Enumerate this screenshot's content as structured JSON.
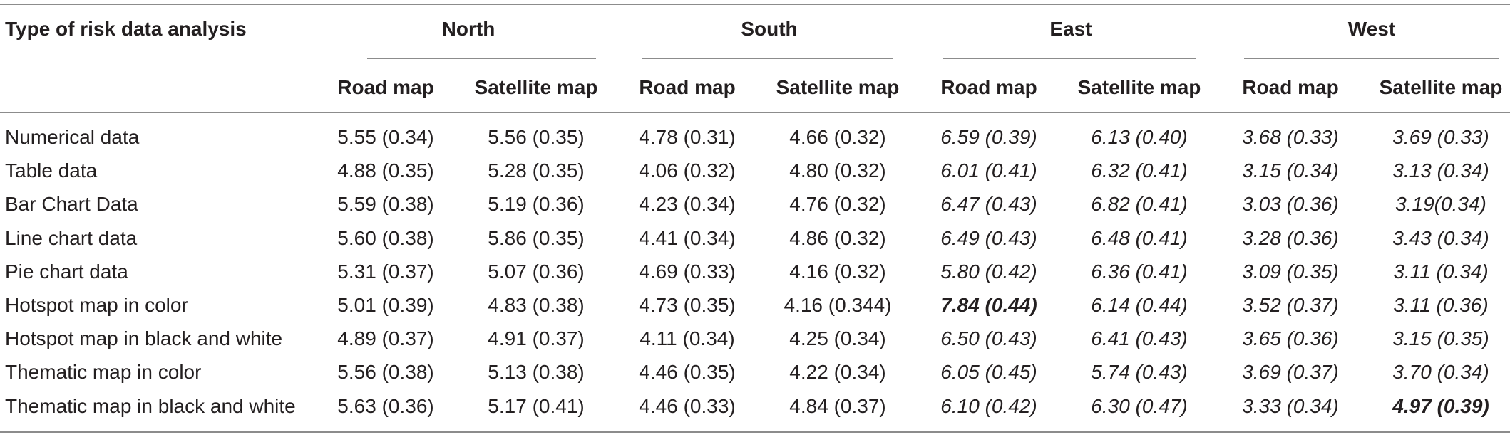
{
  "table": {
    "stub_header": "Type of risk data analysis",
    "groups": [
      "North",
      "South",
      "East",
      "West"
    ],
    "subheaders": [
      "Road map",
      "Satellite map",
      "Road map",
      "Satellite map",
      "Road map",
      "Satellite map",
      "Road map",
      "Satellite map"
    ],
    "rows": [
      {
        "label": "Numerical data",
        "cells": [
          "5.55 (0.34)",
          "5.56 (0.35)",
          "4.78 (0.31)",
          "4.66 (0.32)",
          "6.59 (0.39)",
          "6.13 (0.40)",
          "3.68 (0.33)",
          "3.69 (0.33)"
        ]
      },
      {
        "label": "Table data",
        "cells": [
          "4.88 (0.35)",
          "5.28 (0.35)",
          "4.06 (0.32)",
          "4.80 (0.32)",
          "6.01 (0.41)",
          "6.32 (0.41)",
          "3.15 (0.34)",
          "3.13 (0.34)"
        ]
      },
      {
        "label": "Bar Chart Data",
        "cells": [
          "5.59 (0.38)",
          "5.19 (0.36)",
          "4.23 (0.34)",
          "4.76 (0.32)",
          "6.47 (0.43)",
          "6.82 (0.41)",
          "3.03 (0.36)",
          "3.19(0.34)"
        ]
      },
      {
        "label": "Line chart data",
        "cells": [
          "5.60 (0.38)",
          "5.86 (0.35)",
          "4.41 (0.34)",
          "4.86 (0.32)",
          "6.49 (0.43)",
          "6.48 (0.41)",
          "3.28 (0.36)",
          "3.43 (0.34)"
        ]
      },
      {
        "label": "Pie chart data",
        "cells": [
          "5.31 (0.37)",
          "5.07 (0.36)",
          "4.69 (0.33)",
          "4.16 (0.32)",
          "5.80 (0.42)",
          "6.36 (0.41)",
          "3.09 (0.35)",
          "3.11 (0.34)"
        ]
      },
      {
        "label": "Hotspot map in color",
        "cells": [
          "5.01 (0.39)",
          "4.83 (0.38)",
          "4.73 (0.35)",
          "4.16 (0.344)",
          "7.84 (0.44)",
          "6.14 (0.44)",
          "3.52 (0.37)",
          "3.11 (0.36)"
        ]
      },
      {
        "label": "Hotspot map in black and white",
        "cells": [
          "4.89 (0.37)",
          "4.91 (0.37)",
          "4.11 (0.34)",
          "4.25 (0.34)",
          "6.50 (0.43)",
          "6.41 (0.43)",
          "3.65 (0.36)",
          "3.15 (0.35)"
        ]
      },
      {
        "label": "Thematic map in color",
        "cells": [
          "5.56 (0.38)",
          "5.13 (0.38)",
          "4.46 (0.35)",
          "4.22 (0.34)",
          "6.05 (0.45)",
          "5.74 (0.43)",
          "3.69 (0.37)",
          "3.70 (0.34)"
        ]
      },
      {
        "label": "Thematic map in black and white",
        "cells": [
          "5.63 (0.36)",
          "5.17 (0.41)",
          "4.46 (0.33)",
          "4.84 (0.37)",
          "6.10 (0.42)",
          "6.30 (0.47)",
          "3.33 (0.34)",
          "4.97 (0.39)"
        ]
      }
    ],
    "italic_columns": [
      4,
      5,
      6,
      7
    ],
    "bold_cells": [
      [
        5,
        4
      ],
      [
        8,
        7
      ]
    ]
  }
}
